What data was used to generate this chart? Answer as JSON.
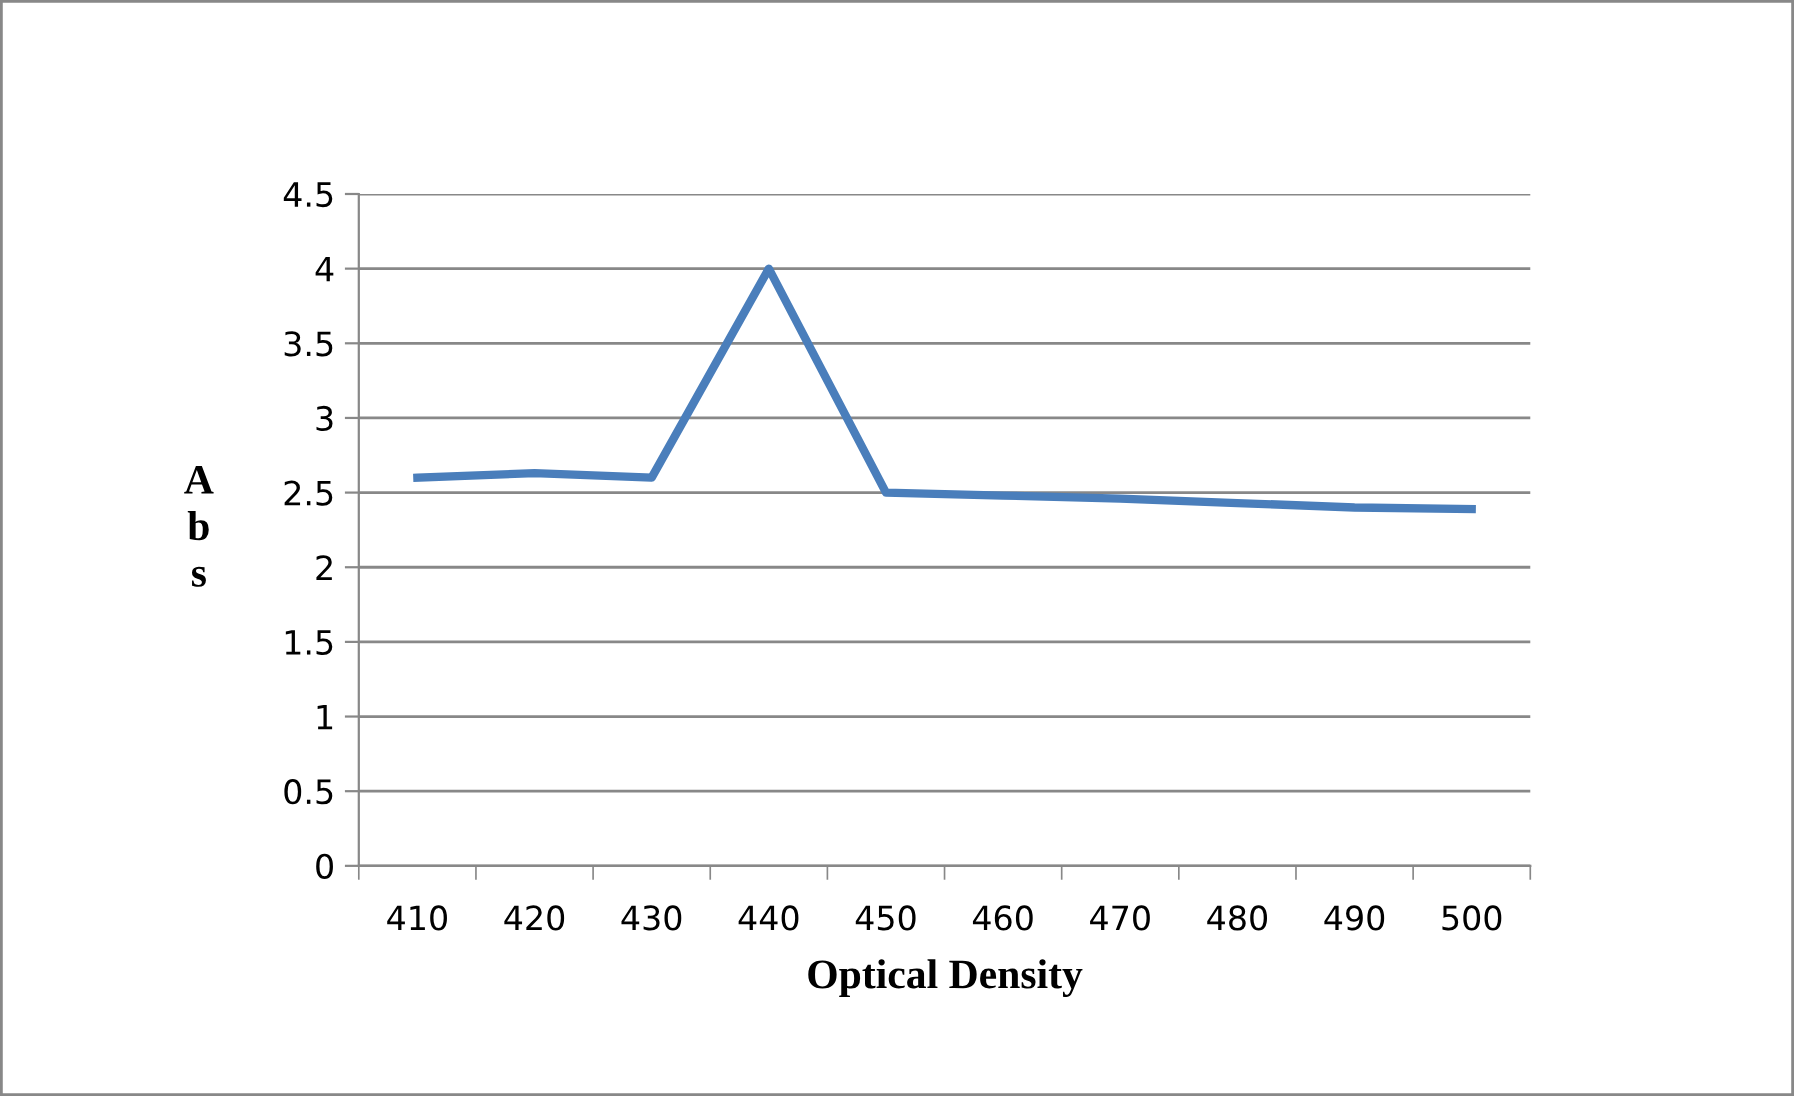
{
  "chart_data": {
    "type": "line",
    "xlabel": "Optical Density",
    "ylabel": "Abs",
    "categories": [
      "410",
      "420",
      "430",
      "440",
      "450",
      "460",
      "470",
      "480",
      "490",
      "500"
    ],
    "series": [
      {
        "color": "#4a7ebb",
        "values": [
          2.6,
          2.63,
          2.6,
          4.0,
          2.5,
          2.48,
          2.46,
          2.43,
          2.4,
          2.39
        ]
      }
    ],
    "ylim": [
      0,
      4.5
    ],
    "yticks": [
      0,
      0.5,
      1,
      1.5,
      2,
      2.5,
      3,
      3.5,
      4,
      4.5
    ],
    "grid": "y",
    "legend": false,
    "marker": "none",
    "line_style": "solid"
  }
}
